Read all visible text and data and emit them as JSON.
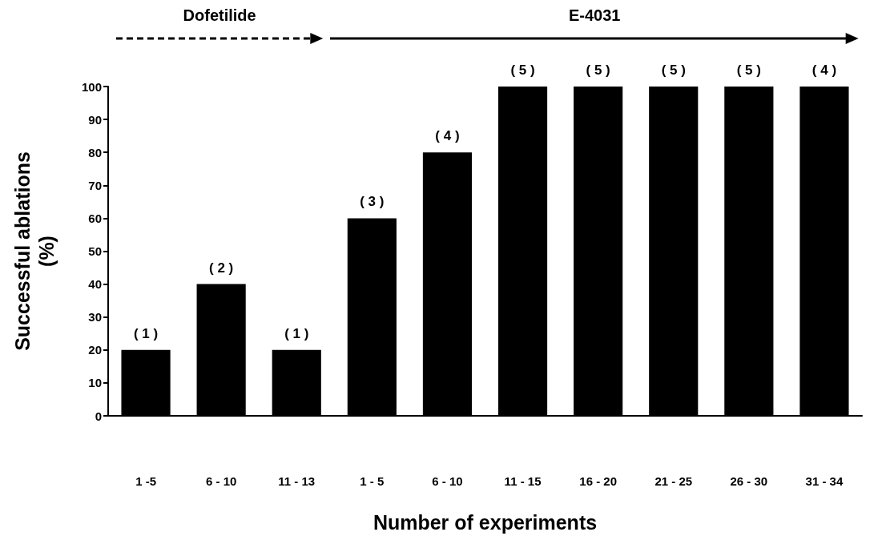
{
  "chart_data": {
    "type": "bar",
    "xlabel": "Number of experiments",
    "ylabel": "Successful ablations\n(%)",
    "categories": [
      "1 -5",
      "6 - 10",
      "11 - 13",
      "1 - 5",
      "6 - 10",
      "11 - 15",
      "16 - 20",
      "21 - 25",
      "26 - 30",
      "31 - 34"
    ],
    "values": [
      20,
      40,
      20,
      60,
      80,
      100,
      100,
      100,
      100,
      100
    ],
    "color": "#000000",
    "ylim": [
      0,
      100
    ],
    "yticks": [
      0,
      10,
      20,
      30,
      40,
      50,
      60,
      70,
      80,
      90,
      100
    ],
    "grid": false,
    "annotations": [
      "Dofetilide",
      "E-4031",
      "( 1 )",
      "( 2 )",
      "( 1 )",
      "( 3 )",
      "( 4 )",
      "( 5 )",
      "( 5 )",
      "( 5 )",
      "( 5 )",
      "( 4 )"
    ]
  }
}
